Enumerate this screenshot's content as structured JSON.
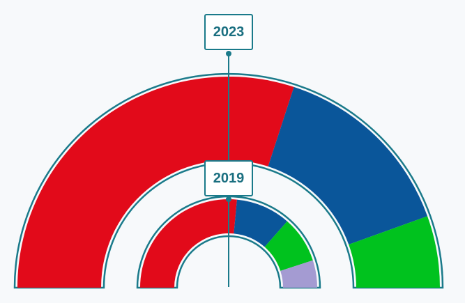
{
  "chart_data": {
    "type": "pie",
    "title": "",
    "rings": [
      {
        "year": "2023",
        "slices": [
          {
            "value": 60.0,
            "color": "#e20a1a"
          },
          {
            "value": 29.0,
            "color": "#0a569a"
          },
          {
            "value": 11.0,
            "color": "#00c21e"
          }
        ]
      },
      {
        "year": "2019",
        "slices": [
          {
            "value": 53.0,
            "color": "#e20a1a"
          },
          {
            "value": 20.0,
            "color": "#0a569a"
          },
          {
            "value": 17.0,
            "color": "#00c21e"
          },
          {
            "value": 10.0,
            "color": "#a49bd2"
          }
        ]
      }
    ]
  },
  "colors": {
    "outline": "#1a7a8a",
    "background": "#f7f9fb"
  }
}
